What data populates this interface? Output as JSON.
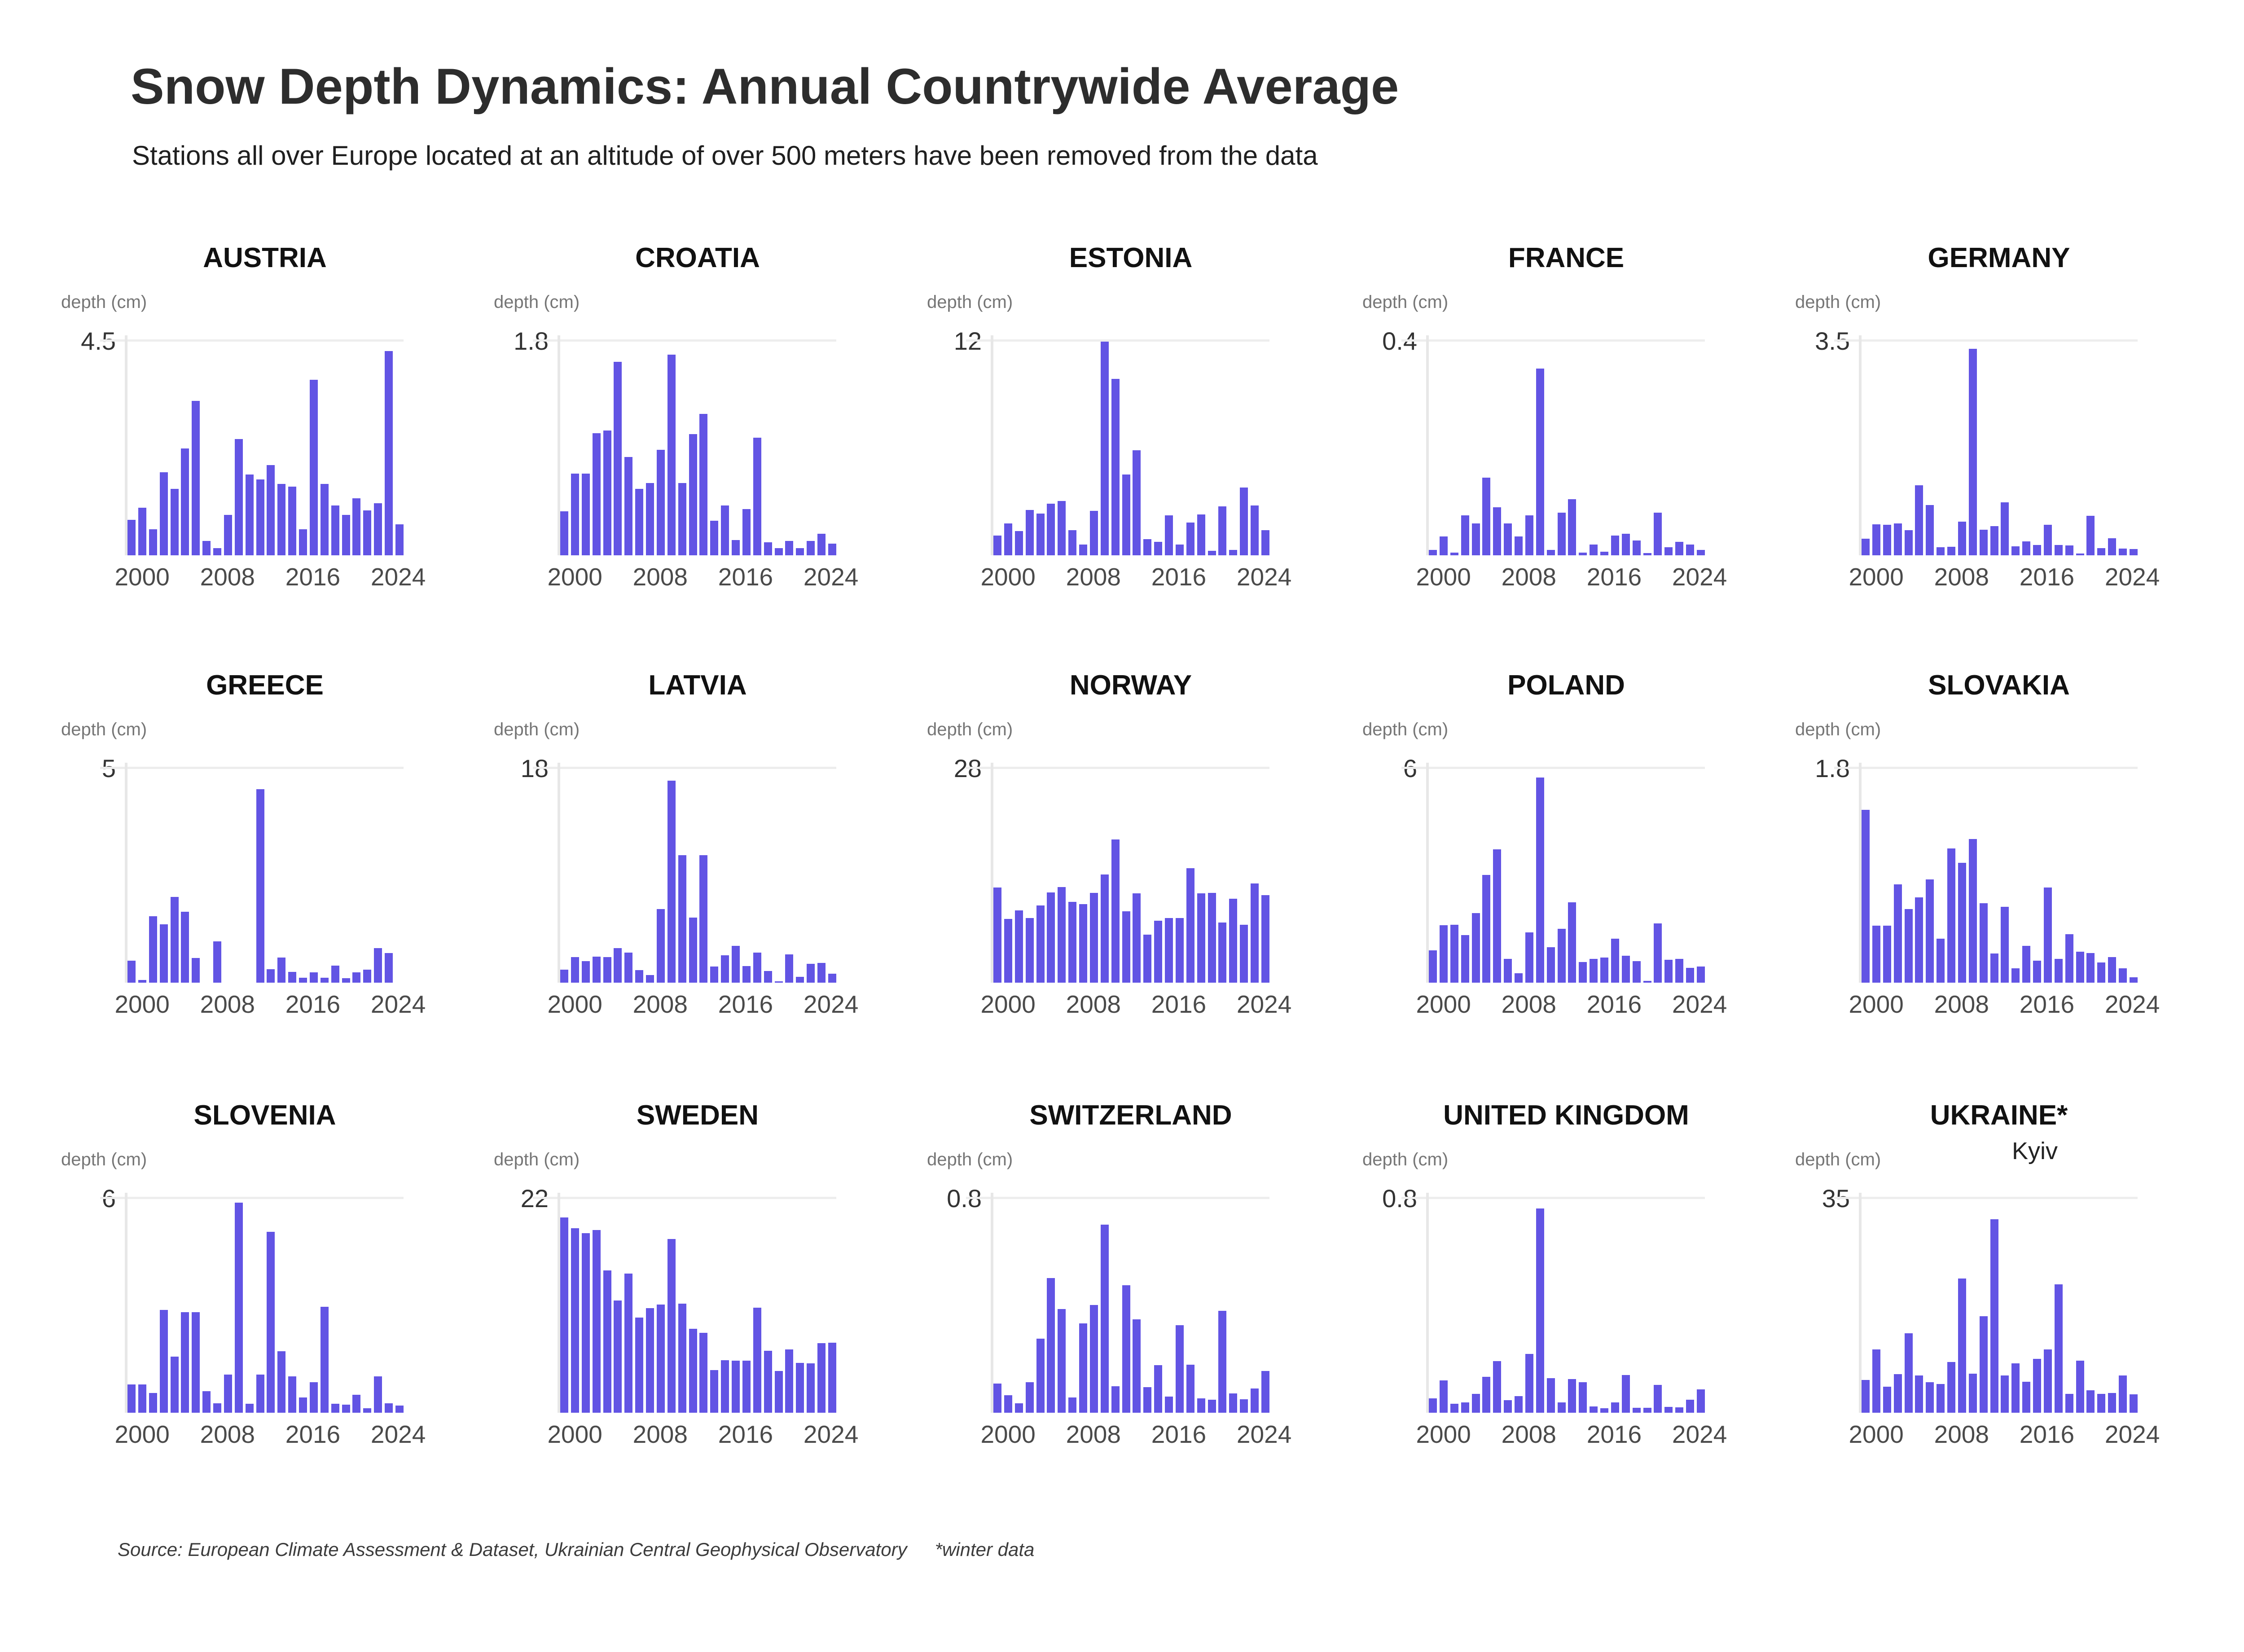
{
  "header": {
    "title": "Snow Depth Dynamics: Annual Countrywide Average",
    "subtitle": "Stations all over Europe located at an altitude of over 500 meters have been removed from the data"
  },
  "footer": {
    "source": "Source: European Climate Assessment & Dataset, Ukrainian Central Geophysical Observatory",
    "note": "*winter data"
  },
  "accent_color": "#6254e4",
  "chart_data": {
    "type": "bar",
    "ylabel": "depth (cm)",
    "xtick_labels": [
      "2000",
      "2008",
      "2016",
      "2024"
    ],
    "grid": "top-line-only",
    "years": [
      1999,
      2000,
      2001,
      2002,
      2003,
      2004,
      2005,
      2006,
      2007,
      2008,
      2009,
      2010,
      2011,
      2012,
      2013,
      2014,
      2015,
      2016,
      2017,
      2018,
      2019,
      2020,
      2021,
      2022,
      2023,
      2024
    ],
    "charts": [
      {
        "title": "AUSTRIA",
        "ymax_label": "4.5",
        "ymax": 4.5,
        "values": [
          0.75,
          1.0,
          0.55,
          1.75,
          1.4,
          2.25,
          3.25,
          0.3,
          0.15,
          0.85,
          2.45,
          1.7,
          1.6,
          1.9,
          1.5,
          1.45,
          0.55,
          3.7,
          1.5,
          1.05,
          0.85,
          1.2,
          0.95,
          1.1,
          4.3,
          0.65
        ]
      },
      {
        "title": "CROATIA",
        "ymax_label": "1.8",
        "ymax": 1.8,
        "values": [
          0.37,
          0.69,
          0.69,
          1.03,
          1.05,
          1.63,
          0.83,
          0.56,
          0.61,
          0.89,
          1.69,
          0.61,
          1.02,
          1.19,
          0.29,
          0.42,
          0.13,
          0.39,
          0.99,
          0.11,
          0.06,
          0.12,
          0.06,
          0.12,
          0.18,
          0.1
        ]
      },
      {
        "title": "ESTONIA",
        "ymax_label": "12",
        "ymax": 12,
        "values": [
          1.1,
          1.8,
          1.35,
          2.55,
          2.35,
          2.9,
          3.05,
          1.4,
          0.6,
          2.5,
          12,
          9.9,
          4.55,
          5.9,
          0.9,
          0.75,
          2.25,
          0.6,
          1.85,
          2.3,
          0.25,
          2.75,
          0.3,
          3.8,
          2.8,
          1.4
        ]
      },
      {
        "title": "FRANCE",
        "ymax_label": "0.4",
        "ymax": 0.4,
        "values": [
          0.01,
          0.035,
          0.005,
          0.075,
          0.06,
          0.145,
          0.09,
          0.06,
          0.035,
          0.075,
          0.35,
          0.01,
          0.08,
          0.105,
          0.005,
          0.02,
          0.007,
          0.037,
          0.04,
          0.028,
          0.004,
          0.08,
          0.015,
          0.025,
          0.02,
          0.01
        ]
      },
      {
        "title": "GERMANY",
        "ymax_label": "3.5",
        "ymax": 3.5,
        "values": [
          0.27,
          0.51,
          0.5,
          0.52,
          0.41,
          1.15,
          0.82,
          0.13,
          0.14,
          0.55,
          3.38,
          0.42,
          0.48,
          0.87,
          0.15,
          0.23,
          0.17,
          0.5,
          0.17,
          0.16,
          0.03,
          0.65,
          0.12,
          0.28,
          0.11,
          0.1
        ]
      },
      {
        "title": "GREECE",
        "ymax_label": "5",
        "ymax": 5,
        "values": [
          0.51,
          0.06,
          1.56,
          1.37,
          2.01,
          1.66,
          0.58,
          0,
          0.97,
          0,
          0,
          0,
          4.53,
          0.32,
          0.59,
          0.25,
          0.12,
          0.24,
          0.12,
          0.4,
          0.1,
          0.24,
          0.3,
          0.81,
          0.69,
          0
        ]
      },
      {
        "title": "LATVIA",
        "ymax_label": "18",
        "ymax": 18,
        "values": [
          1.1,
          2.15,
          1.8,
          2.2,
          2.15,
          2.9,
          2.55,
          1.05,
          0.65,
          6.2,
          17.0,
          10.75,
          5.5,
          10.75,
          1.35,
          2.3,
          3.1,
          1.4,
          2.55,
          1.0,
          0.1,
          2.4,
          0.5,
          1.6,
          1.65,
          0.75
        ]
      },
      {
        "title": "NORWAY",
        "ymax_label": "28",
        "ymax": 28,
        "values": [
          12.45,
          8.35,
          9.45,
          8.45,
          10.1,
          11.85,
          12.55,
          10.6,
          10.3,
          11.75,
          14.15,
          18.75,
          9.35,
          11.7,
          6.3,
          8.1,
          8.45,
          8.45,
          15.0,
          11.7,
          11.75,
          7.9,
          11.0,
          7.6,
          13.0,
          11.45
        ]
      },
      {
        "title": "POLAND",
        "ymax_label": "6",
        "ymax": 6,
        "values": [
          0.91,
          1.61,
          1.63,
          1.34,
          1.95,
          3.03,
          3.75,
          0.67,
          0.27,
          1.41,
          5.76,
          0.99,
          1.51,
          2.26,
          0.58,
          0.67,
          0.7,
          1.24,
          0.76,
          0.6,
          0.05,
          1.66,
          0.64,
          0.67,
          0.42,
          0.45
        ]
      },
      {
        "title": "SLOVAKIA",
        "ymax_label": "1.8",
        "ymax": 1.8,
        "values": [
          1.455,
          0.48,
          0.48,
          0.83,
          0.62,
          0.72,
          0.87,
          0.37,
          1.13,
          1.01,
          1.21,
          0.67,
          0.245,
          0.64,
          0.12,
          0.31,
          0.185,
          0.8,
          0.2,
          0.41,
          0.26,
          0.25,
          0.17,
          0.215,
          0.12,
          0.045
        ]
      },
      {
        "title": "SLOVENIA",
        "ymax_label": "6",
        "ymax": 6,
        "values": [
          0.79,
          0.8,
          0.55,
          2.89,
          1.57,
          2.83,
          2.83,
          0.6,
          0.27,
          1.07,
          5.9,
          0.25,
          1.07,
          5.08,
          1.73,
          1.02,
          0.43,
          0.86,
          2.97,
          0.25,
          0.23,
          0.51,
          0.12,
          1.02,
          0.26,
          0.2
        ]
      },
      {
        "title": "SWEDEN",
        "ymax_label": "22",
        "ymax": 22,
        "values": [
          20.1,
          19.0,
          18.5,
          18.8,
          14.65,
          11.55,
          14.35,
          9.8,
          10.75,
          11.15,
          17.9,
          11.25,
          8.65,
          8.25,
          4.4,
          5.4,
          5.35,
          5.35,
          10.8,
          6.4,
          4.3,
          6.5,
          5.15,
          5.1,
          7.15,
          7.2
        ]
      },
      {
        "title": "SWITZERLAND",
        "ymax_label": "0.8",
        "ymax": 0.8,
        "values": [
          0.11,
          0.066,
          0.036,
          0.115,
          0.277,
          0.505,
          0.388,
          0.058,
          0.335,
          0.404,
          0.704,
          0.099,
          0.477,
          0.35,
          0.095,
          0.178,
          0.06,
          0.328,
          0.18,
          0.053,
          0.048,
          0.382,
          0.073,
          0.05,
          0.091,
          0.156
        ]
      },
      {
        "title": "UNITED KINGDOM",
        "ymax_label": "0.8",
        "ymax": 0.8,
        "values": [
          0.054,
          0.121,
          0.033,
          0.038,
          0.071,
          0.135,
          0.193,
          0.047,
          0.062,
          0.22,
          0.765,
          0.13,
          0.038,
          0.126,
          0.114,
          0.023,
          0.016,
          0.038,
          0.142,
          0.018,
          0.018,
          0.104,
          0.022,
          0.02,
          0.049,
          0.088
        ]
      },
      {
        "title": "UKRAINE*",
        "subtitle": "Kyiv",
        "ymax_label": "35",
        "ymax": 35,
        "values": [
          5.4,
          10.4,
          4.3,
          6.3,
          13.0,
          6.1,
          5.0,
          4.7,
          8.3,
          22.0,
          6.4,
          15.8,
          31.7,
          6.1,
          8.1,
          5.1,
          8.8,
          10.4,
          21.0,
          3.1,
          8.5,
          3.7,
          3.1,
          3.2,
          6.1,
          3.0
        ]
      }
    ]
  }
}
